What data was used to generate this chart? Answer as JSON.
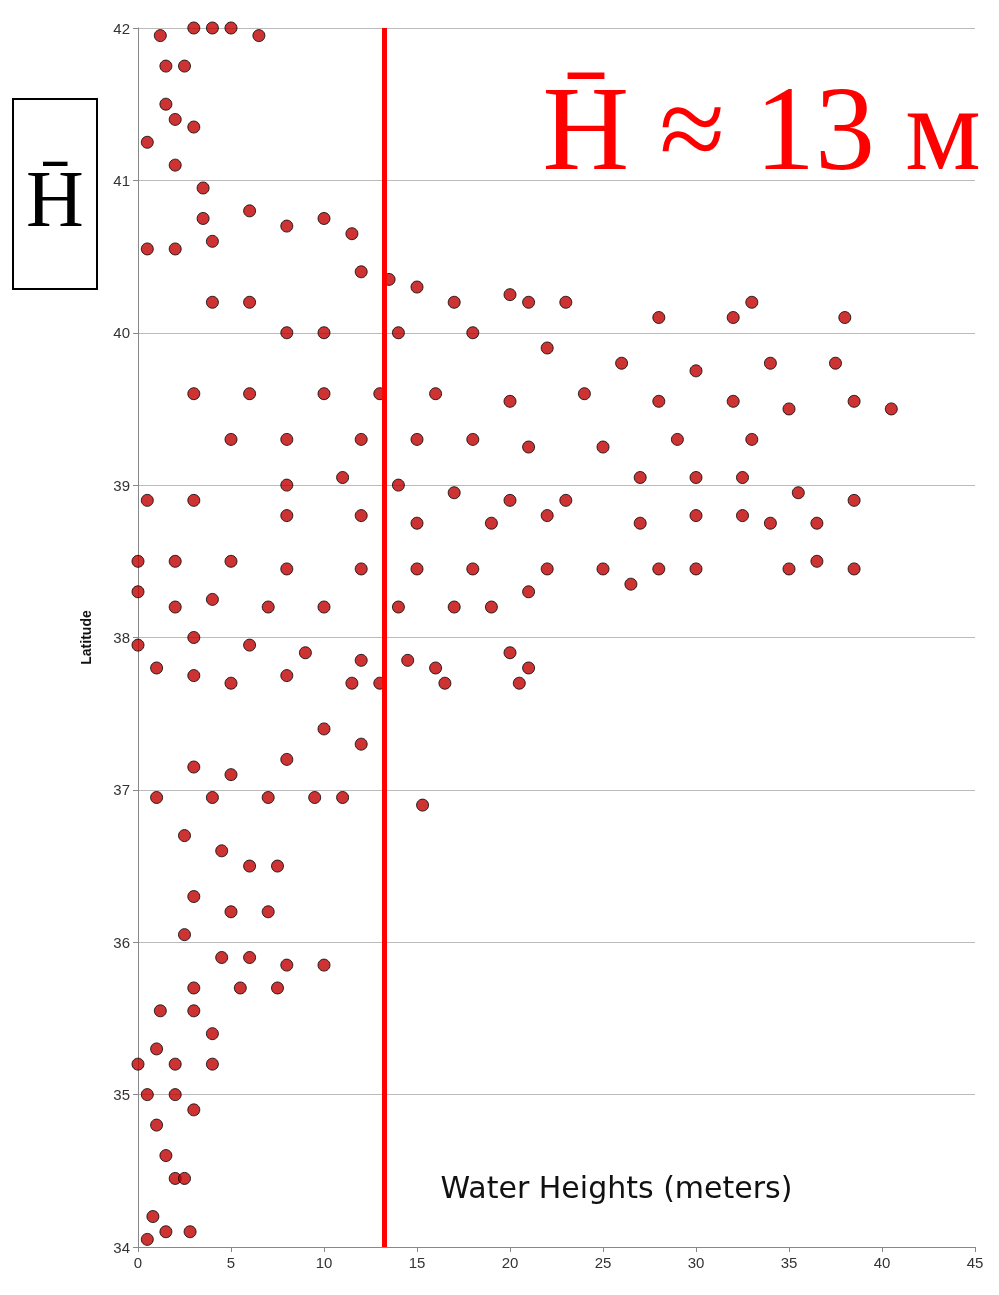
{
  "chart_data": {
    "type": "scatter",
    "xlabel": "Water Heights (meters)",
    "ylabel": "Latitude",
    "xlim": [
      0,
      45
    ],
    "xticks": [
      0,
      5,
      10,
      15,
      20,
      25,
      30,
      35,
      40,
      45
    ],
    "ylim": [
      34,
      42
    ],
    "yticks": [
      34,
      35,
      36,
      37,
      38,
      39,
      40,
      41,
      42
    ],
    "grid": "y",
    "marker": "circle",
    "ref_lines": [
      {
        "axis": "x",
        "value": 13.25,
        "label": "H̄ ≈ 13 м",
        "color": "#ff0000"
      }
    ],
    "annotations": [
      "H̄"
    ],
    "series": [
      {
        "color": "#c00000",
        "x": [
          3,
          4,
          5,
          6.5,
          1.2,
          1.5,
          2.5,
          1.5,
          2,
          3,
          0.5,
          2,
          3.5,
          3.5,
          0.5,
          2,
          4,
          6,
          8,
          10,
          11.5,
          12,
          13.5,
          15,
          17,
          20,
          21,
          23,
          33,
          38,
          28,
          32,
          4,
          6,
          8,
          10,
          14,
          18,
          22,
          26,
          30,
          34,
          37.5,
          3,
          6,
          10,
          13,
          16,
          20,
          24,
          28,
          32,
          35,
          38.5,
          40.5,
          5,
          8,
          12,
          15,
          18,
          21,
          25,
          29,
          33,
          0.5,
          3,
          8,
          11,
          14,
          17,
          20,
          23,
          27,
          30,
          32.5,
          35.5,
          38.5,
          8,
          12,
          15,
          19,
          22,
          27,
          30,
          32.5,
          34,
          36.5,
          0,
          2,
          5,
          8,
          12,
          15,
          18,
          22,
          25,
          28,
          30,
          35,
          38.5,
          36.5,
          26.5,
          0,
          2,
          4,
          7,
          10,
          14,
          17,
          19,
          21,
          0,
          3,
          6,
          9,
          12,
          14.5,
          16,
          20,
          21,
          1,
          3,
          5,
          8,
          11.5,
          13,
          16.5,
          20.5,
          10,
          12,
          5,
          3,
          8,
          1,
          4,
          7,
          9.5,
          11,
          15.3,
          2.5,
          4.5,
          6,
          7.5,
          3,
          5,
          7,
          2.5,
          4.5,
          6,
          8,
          10,
          3,
          5.5,
          7.5,
          1.2,
          3,
          4,
          1,
          0,
          2,
          4,
          0.5,
          2,
          3,
          1,
          1.5,
          2,
          2.5,
          0.8,
          0.5,
          1.5,
          2.8
        ],
        "values": [
          42,
          42,
          42,
          41.95,
          41.95,
          41.75,
          41.75,
          41.5,
          41.4,
          41.35,
          41.25,
          41.1,
          40.95,
          40.75,
          40.55,
          40.55,
          40.6,
          40.8,
          40.7,
          40.75,
          40.65,
          40.4,
          40.35,
          40.3,
          40.2,
          40.25,
          40.2,
          40.2,
          40.2,
          40.1,
          40.1,
          40.1,
          40.2,
          40.2,
          40,
          40,
          40,
          40,
          39.9,
          39.8,
          39.75,
          39.8,
          39.8,
          39.6,
          39.6,
          39.6,
          39.6,
          39.6,
          39.55,
          39.6,
          39.55,
          39.55,
          39.5,
          39.55,
          39.5,
          39.3,
          39.3,
          39.3,
          39.3,
          39.3,
          39.25,
          39.25,
          39.3,
          39.3,
          38.9,
          38.9,
          39,
          39.05,
          39,
          38.95,
          38.9,
          38.9,
          39.05,
          39.05,
          39.05,
          38.95,
          38.9,
          38.8,
          38.8,
          38.75,
          38.75,
          38.8,
          38.75,
          38.8,
          38.8,
          38.75,
          38.75,
          38.5,
          38.5,
          38.5,
          38.45,
          38.45,
          38.45,
          38.45,
          38.45,
          38.45,
          38.45,
          38.45,
          38.45,
          38.45,
          38.5,
          38.35,
          38.3,
          38.2,
          38.25,
          38.2,
          38.2,
          38.2,
          38.2,
          38.2,
          38.3,
          37.95,
          38,
          37.95,
          37.9,
          37.85,
          37.85,
          37.8,
          37.9,
          37.8,
          37.8,
          37.75,
          37.7,
          37.75,
          37.7,
          37.7,
          37.7,
          37.7,
          37.4,
          37.3,
          37.1,
          37.15,
          37.2,
          36.95,
          36.95,
          36.95,
          36.95,
          36.95,
          36.9,
          36.7,
          36.6,
          36.5,
          36.5,
          36.3,
          36.2,
          36.2,
          36.05,
          35.9,
          35.9,
          35.85,
          35.85,
          35.7,
          35.7,
          35.7,
          35.55,
          35.55,
          35.4,
          35.3,
          35.2,
          35.2,
          35.2,
          35,
          35,
          34.9,
          34.8,
          34.6,
          34.45,
          34.45,
          34.2,
          34.05,
          34.1,
          34.1
        ]
      }
    ]
  }
}
